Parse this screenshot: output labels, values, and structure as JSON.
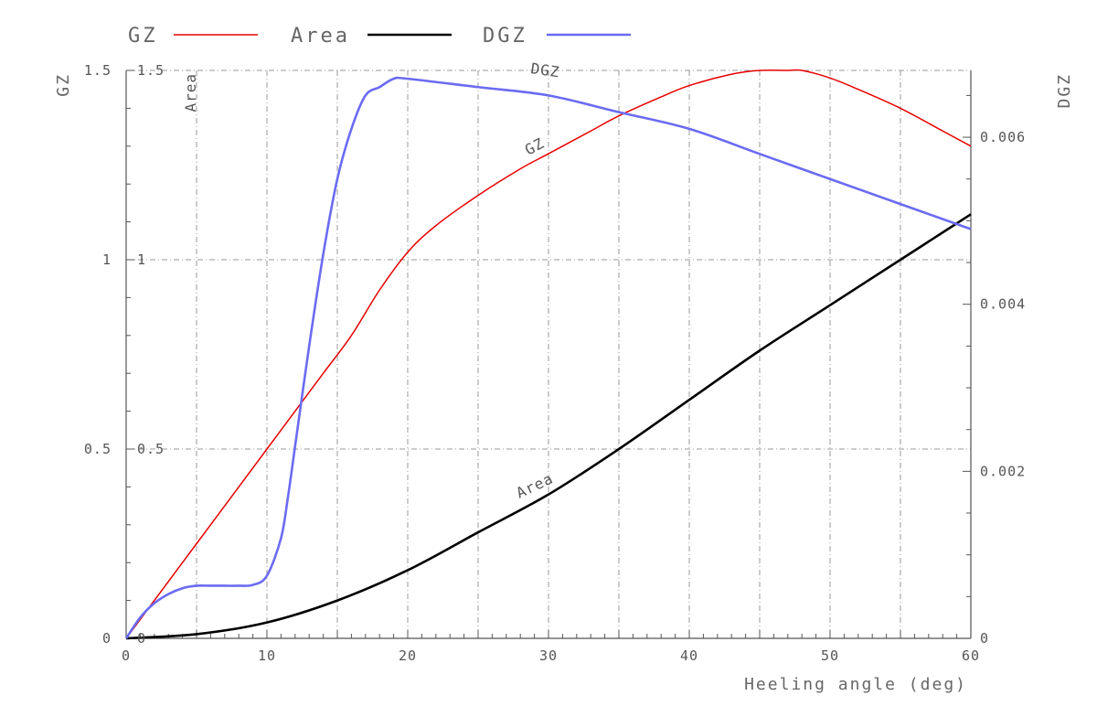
{
  "chart_data": {
    "type": "line",
    "title": "",
    "xlabel": "Heeling angle (deg)",
    "ylabel_left": "GZ",
    "ylabel_right": "DGZ",
    "xlim": [
      0,
      60
    ],
    "ylim_left": [
      0,
      1.5
    ],
    "ylim_right": [
      0,
      0.0068
    ],
    "grid": true,
    "legend_position": "top-left",
    "x_ticks": [
      0,
      10,
      20,
      30,
      40,
      50,
      60
    ],
    "x_ticks_labels": [
      "0",
      "10",
      "20",
      "30",
      "40",
      "50",
      "60"
    ],
    "y_left_ticks": [
      0,
      0.5,
      1,
      1.5
    ],
    "y_left_ticks_labels": [
      "0",
      "0.5",
      "1",
      "1.5"
    ],
    "y_area_ticks": [
      0,
      0.5,
      1,
      1.5
    ],
    "y_area_ticks_labels": [
      "0",
      "0.5",
      "1",
      "1.5"
    ],
    "y_area_axis_label": "Area",
    "y_right_ticks": [
      0,
      0.002,
      0.004,
      0.006
    ],
    "y_right_ticks_labels": [
      "0",
      "0.002",
      "0.004",
      "0.006"
    ],
    "series": [
      {
        "name": "GZ",
        "color": "#e60000",
        "axis": "left",
        "curve_label": "GZ",
        "x": [
          0,
          2,
          5,
          8,
          10,
          12,
          14,
          16,
          18,
          20,
          22,
          25,
          28,
          30,
          33,
          35,
          38,
          40,
          43,
          45,
          47,
          48,
          50,
          52,
          55,
          58,
          60
        ],
        "y": [
          0,
          0.1,
          0.25,
          0.4,
          0.5,
          0.6,
          0.7,
          0.8,
          0.92,
          1.02,
          1.09,
          1.17,
          1.24,
          1.28,
          1.34,
          1.38,
          1.43,
          1.46,
          1.49,
          1.5,
          1.5,
          1.5,
          1.48,
          1.45,
          1.4,
          1.34,
          1.3
        ]
      },
      {
        "name": "Area",
        "color": "#000000",
        "axis": "left",
        "curve_label": "Area",
        "x": [
          0,
          5,
          10,
          15,
          20,
          25,
          30,
          35,
          40,
          45,
          50,
          55,
          60
        ],
        "y": [
          0,
          0.011,
          0.042,
          0.1,
          0.18,
          0.28,
          0.38,
          0.5,
          0.63,
          0.76,
          0.88,
          1.0,
          1.12
        ]
      },
      {
        "name": "DGZ",
        "color": "#6b6bf2",
        "axis": "right",
        "curve_label": "DGZ",
        "x": [
          0,
          1,
          2,
          3,
          4,
          5,
          6,
          7,
          8,
          9,
          10,
          11,
          11.5,
          12,
          13,
          14,
          15,
          16,
          17,
          18,
          19,
          20,
          25,
          30,
          35,
          40,
          45,
          50,
          55,
          60
        ],
        "y": [
          0,
          0.00025,
          0.00042,
          0.00053,
          0.0006,
          0.00063,
          0.00063,
          0.00063,
          0.00063,
          0.00064,
          0.00075,
          0.0012,
          0.0017,
          0.0023,
          0.0035,
          0.0046,
          0.0055,
          0.0061,
          0.0065,
          0.0066,
          0.0067,
          0.0067,
          0.0066,
          0.0065,
          0.0063,
          0.0061,
          0.0058,
          0.0055,
          0.0052,
          0.0049
        ]
      }
    ]
  }
}
